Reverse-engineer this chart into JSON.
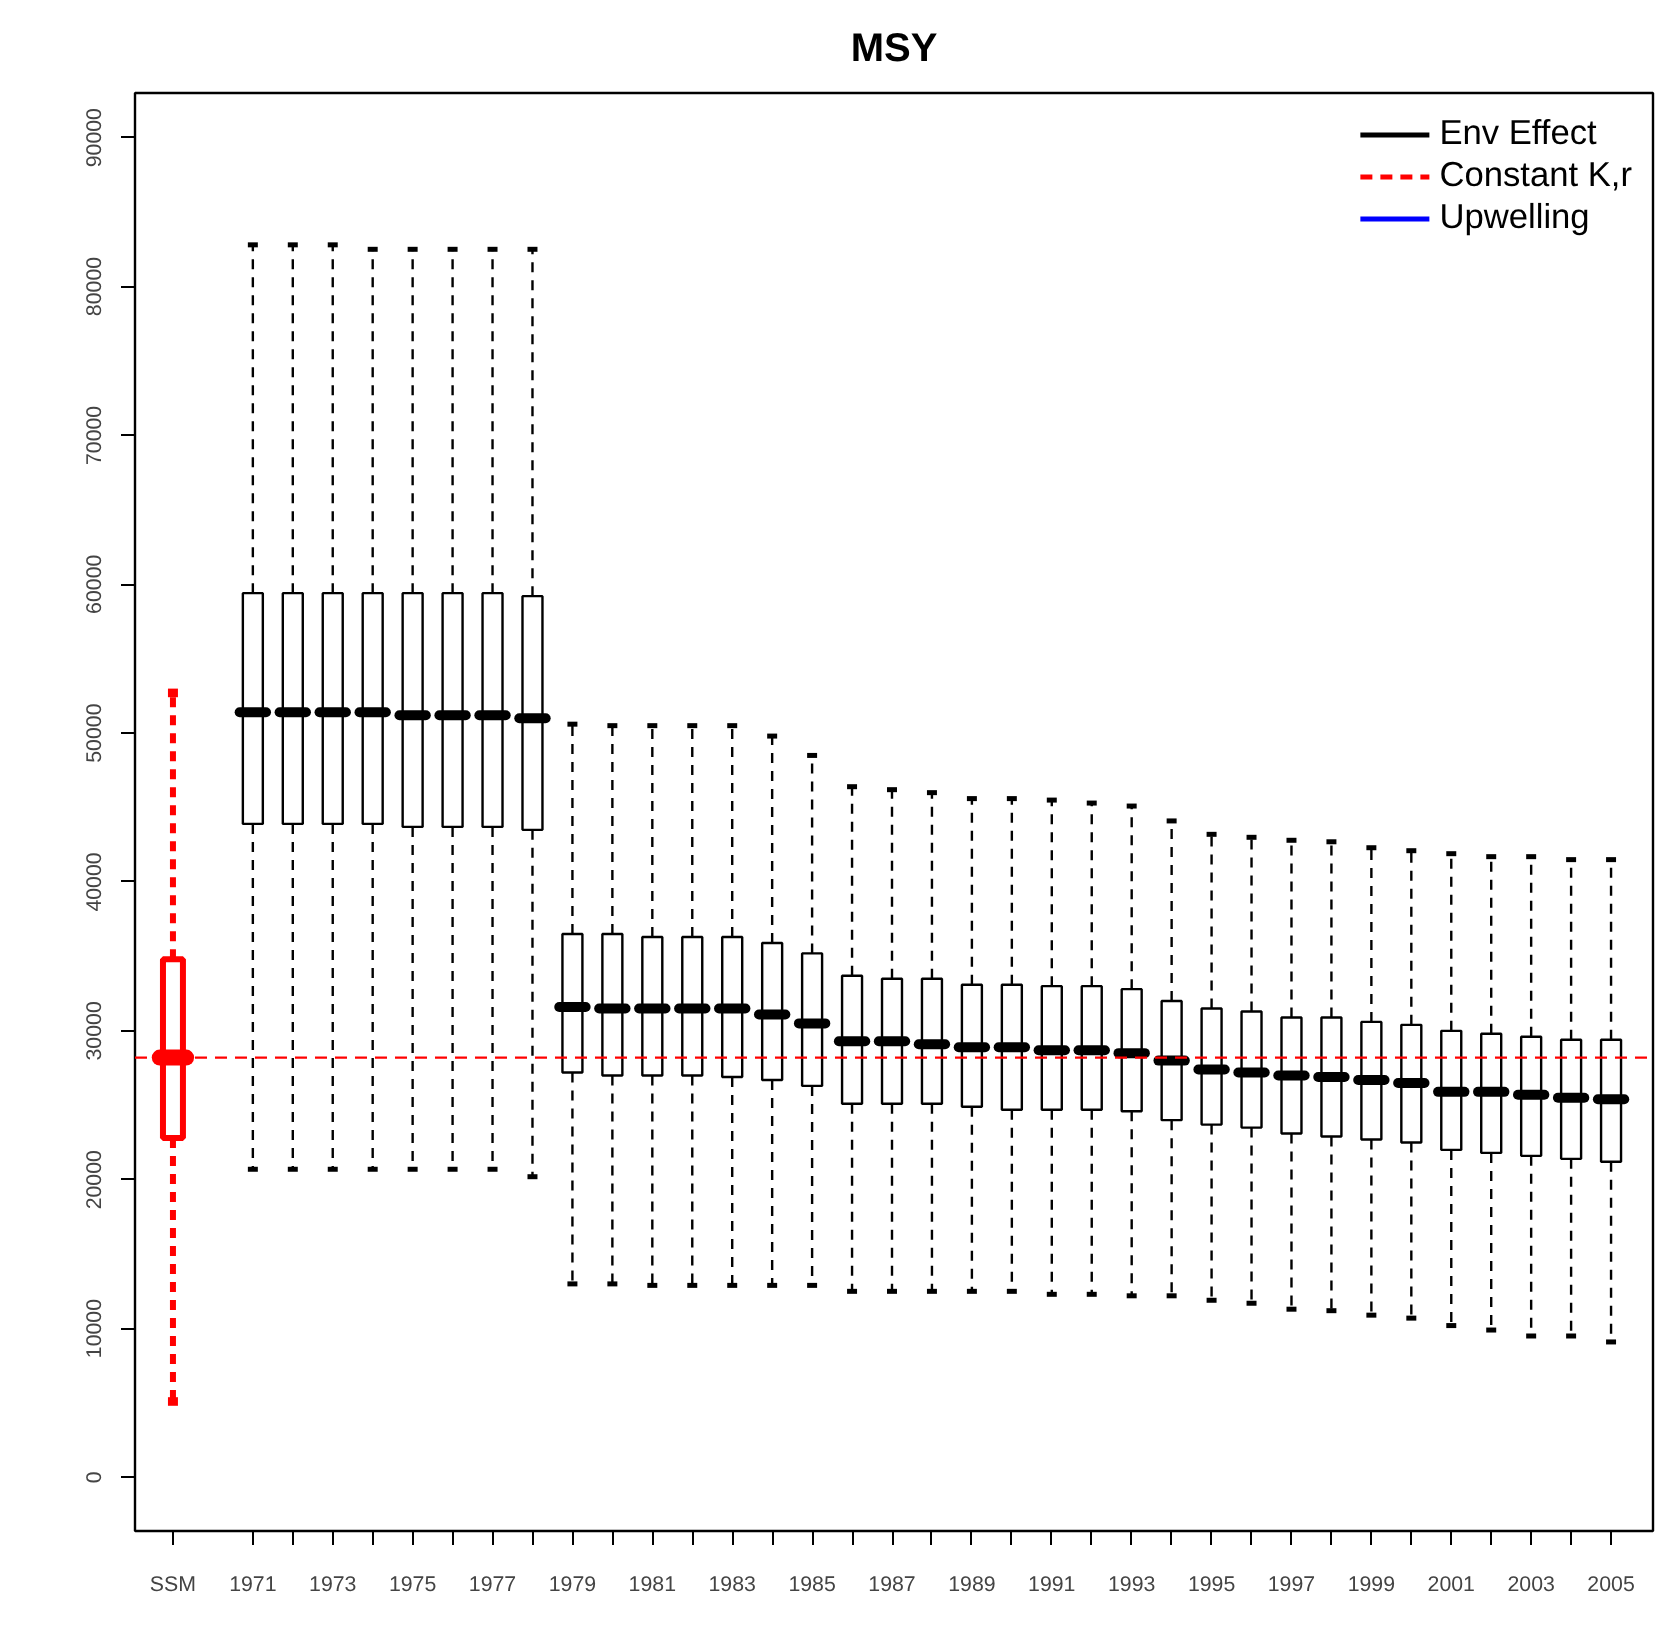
{
  "chart_data": {
    "type": "box",
    "title": "MSY",
    "categories": [
      "SSM",
      null,
      "1971",
      null,
      "1973",
      null,
      "1975",
      null,
      "1977",
      null,
      "1979",
      null,
      "1981",
      null,
      "1983",
      null,
      "1985",
      null,
      "1987",
      null,
      "1989",
      null,
      "1991",
      null,
      "1993",
      null,
      "1995",
      null,
      "1997",
      null,
      "1999",
      null,
      "2001",
      null,
      "2003",
      null,
      "2005"
    ],
    "ylim": [
      -3600,
      93000
    ],
    "yticks": [
      0,
      10000,
      20000,
      30000,
      40000,
      50000,
      60000,
      70000,
      80000,
      90000
    ],
    "grid": false,
    "legend": "top right",
    "ref_lines": [
      {
        "axis": "y",
        "value": 28200,
        "color": "#ff0000",
        "line_style": "dashed"
      }
    ],
    "series": [
      {
        "name": "Env Effect",
        "color": "#000000",
        "line_style": "solid",
        "boxes": [
          null,
          null,
          {
            "low": 20700,
            "q1": 43900,
            "median": 51400,
            "q3": 59400,
            "high": 82800
          },
          {
            "low": 20700,
            "q1": 43900,
            "median": 51400,
            "q3": 59400,
            "high": 82800
          },
          {
            "low": 20700,
            "q1": 43900,
            "median": 51400,
            "q3": 59400,
            "high": 82800
          },
          {
            "low": 20700,
            "q1": 43900,
            "median": 51400,
            "q3": 59400,
            "high": 82500
          },
          {
            "low": 20700,
            "q1": 43700,
            "median": 51200,
            "q3": 59400,
            "high": 82500
          },
          {
            "low": 20700,
            "q1": 43700,
            "median": 51200,
            "q3": 59400,
            "high": 82500
          },
          {
            "low": 20700,
            "q1": 43700,
            "median": 51200,
            "q3": 59400,
            "high": 82500
          },
          {
            "low": 20200,
            "q1": 43500,
            "median": 51000,
            "q3": 59200,
            "high": 82500
          },
          {
            "low": 13000,
            "q1": 27200,
            "median": 31600,
            "q3": 36500,
            "high": 50600
          },
          {
            "low": 13000,
            "q1": 27000,
            "median": 31500,
            "q3": 36500,
            "high": 50500
          },
          {
            "low": 12900,
            "q1": 27000,
            "median": 31500,
            "q3": 36300,
            "high": 50500
          },
          {
            "low": 12900,
            "q1": 27000,
            "median": 31500,
            "q3": 36300,
            "high": 50500
          },
          {
            "low": 12900,
            "q1": 26900,
            "median": 31500,
            "q3": 36300,
            "high": 50500
          },
          {
            "low": 12900,
            "q1": 26700,
            "median": 31100,
            "q3": 35900,
            "high": 49800
          },
          {
            "low": 12900,
            "q1": 26300,
            "median": 30500,
            "q3": 35200,
            "high": 48500
          },
          {
            "low": 12500,
            "q1": 25100,
            "median": 29300,
            "q3": 33700,
            "high": 46400
          },
          {
            "low": 12500,
            "q1": 25100,
            "median": 29300,
            "q3": 33500,
            "high": 46200
          },
          {
            "low": 12500,
            "q1": 25100,
            "median": 29100,
            "q3": 33500,
            "high": 46000
          },
          {
            "low": 12500,
            "q1": 24900,
            "median": 28900,
            "q3": 33100,
            "high": 45600
          },
          {
            "low": 12500,
            "q1": 24700,
            "median": 28900,
            "q3": 33100,
            "high": 45600
          },
          {
            "low": 12300,
            "q1": 24700,
            "median": 28700,
            "q3": 33000,
            "high": 45500
          },
          {
            "low": 12300,
            "q1": 24700,
            "median": 28700,
            "q3": 33000,
            "high": 45300
          },
          {
            "low": 12200,
            "q1": 24600,
            "median": 28500,
            "q3": 32800,
            "high": 45100
          },
          {
            "low": 12200,
            "q1": 24000,
            "median": 28000,
            "q3": 32000,
            "high": 44100
          },
          {
            "low": 11900,
            "q1": 23700,
            "median": 27400,
            "q3": 31500,
            "high": 43200
          },
          {
            "low": 11700,
            "q1": 23500,
            "median": 27200,
            "q3": 31300,
            "high": 43000
          },
          {
            "low": 11300,
            "q1": 23100,
            "median": 27000,
            "q3": 30900,
            "high": 42800
          },
          {
            "low": 11200,
            "q1": 22900,
            "median": 26900,
            "q3": 30900,
            "high": 42700
          },
          {
            "low": 10900,
            "q1": 22700,
            "median": 26700,
            "q3": 30600,
            "high": 42300
          },
          {
            "low": 10700,
            "q1": 22500,
            "median": 26500,
            "q3": 30400,
            "high": 42100
          },
          {
            "low": 10200,
            "q1": 22000,
            "median": 25900,
            "q3": 30000,
            "high": 41900
          },
          {
            "low": 9900,
            "q1": 21800,
            "median": 25900,
            "q3": 29800,
            "high": 41700
          },
          {
            "low": 9500,
            "q1": 21600,
            "median": 25700,
            "q3": 29600,
            "high": 41700
          },
          {
            "low": 9500,
            "q1": 21400,
            "median": 25500,
            "q3": 29400,
            "high": 41500
          },
          {
            "low": 9100,
            "q1": 21200,
            "median": 25400,
            "q3": 29400,
            "high": 41500
          }
        ]
      },
      {
        "name": "Constant K,r",
        "color": "#ff0000",
        "line_style": "dashed",
        "boxes": [
          {
            "low": 5100,
            "q1": 22800,
            "median": 28200,
            "q3": 34800,
            "high": 52700
          },
          null,
          null,
          null,
          null,
          null,
          null,
          null,
          null,
          null,
          null,
          null,
          null,
          null,
          null,
          null,
          null,
          null,
          null,
          null,
          null,
          null,
          null,
          null,
          null,
          null,
          null,
          null,
          null,
          null,
          null,
          null,
          null,
          null,
          null,
          null,
          null
        ]
      },
      {
        "name": "Upwelling",
        "color": "#0000ff",
        "line_style": "solid",
        "boxes": [
          null,
          null,
          null,
          null,
          null,
          null,
          null,
          null,
          null,
          null,
          null,
          null,
          null,
          null,
          null,
          null,
          null,
          null,
          null,
          null,
          null,
          null,
          null,
          null,
          null,
          null,
          null,
          null,
          null,
          null,
          null,
          null,
          null,
          null,
          null,
          null,
          null
        ]
      }
    ]
  }
}
